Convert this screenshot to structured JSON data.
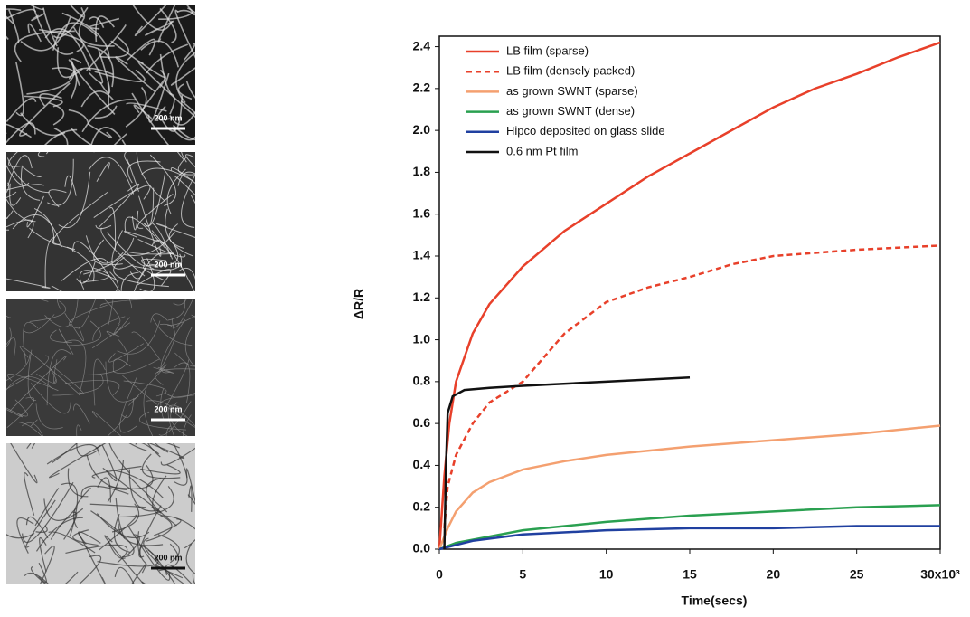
{
  "images": [
    {
      "scale": "200 nm"
    },
    {
      "scale": "200 nm"
    },
    {
      "scale": "200 nm"
    },
    {
      "scale": "200 nm"
    }
  ],
  "chart_data": {
    "type": "line",
    "xlabel": "Time(secs)",
    "ylabel": "ΔR/R",
    "xlim": [
      0,
      30
    ],
    "ylim": [
      0,
      2.45
    ],
    "xticks": [
      0,
      5,
      10,
      15,
      20,
      25,
      {
        "value": 30,
        "label": "30x10³"
      }
    ],
    "yticks": [
      {
        "value": 0,
        "label": "0.0"
      },
      0.2,
      0.4,
      0.6,
      0.8,
      {
        "value": 1,
        "label": "1.0"
      },
      1.2,
      1.4,
      1.6,
      1.8,
      {
        "value": 2,
        "label": "2.0"
      },
      2.2,
      2.4
    ],
    "legend": "upper left",
    "series": [
      {
        "name": "LB film (sparse)",
        "color": "#e8402a",
        "dash": false,
        "x": [
          0,
          0.3,
          0.6,
          1,
          2,
          3,
          5,
          7.5,
          10,
          12.5,
          15,
          17.5,
          20,
          22.5,
          25,
          27.5,
          30
        ],
        "values": [
          0,
          0.35,
          0.6,
          0.8,
          1.03,
          1.17,
          1.35,
          1.52,
          1.65,
          1.78,
          1.89,
          2.0,
          2.11,
          2.2,
          2.27,
          2.35,
          2.42
        ]
      },
      {
        "name": "LB film (densely packed)",
        "color": "#e8402a",
        "dash": true,
        "x": [
          0.3,
          0.5,
          1,
          2,
          3,
          4,
          5,
          7.5,
          10,
          12.5,
          15,
          17.5,
          20,
          25,
          30
        ],
        "values": [
          0.1,
          0.3,
          0.45,
          0.6,
          0.7,
          0.75,
          0.8,
          1.03,
          1.18,
          1.25,
          1.3,
          1.36,
          1.4,
          1.43,
          1.45
        ]
      },
      {
        "name": "as grown SWNT (sparse)",
        "color": "#f4a070",
        "dash": false,
        "x": [
          0,
          0.5,
          1,
          2,
          3,
          5,
          7.5,
          10,
          15,
          20,
          25,
          30
        ],
        "values": [
          0,
          0.1,
          0.18,
          0.27,
          0.32,
          0.38,
          0.42,
          0.45,
          0.49,
          0.52,
          0.55,
          0.59
        ]
      },
      {
        "name": "as grown SWNT (dense)",
        "color": "#2aa050",
        "dash": false,
        "x": [
          0,
          1,
          3,
          5,
          10,
          15,
          20,
          25,
          30
        ],
        "values": [
          0,
          0.03,
          0.06,
          0.09,
          0.13,
          0.16,
          0.18,
          0.2,
          0.21
        ]
      },
      {
        "name": "Hipco deposited on glass slide",
        "color": "#2040a0",
        "dash": false,
        "x": [
          0,
          2,
          5,
          10,
          15,
          20,
          25,
          30
        ],
        "values": [
          0,
          0.04,
          0.07,
          0.09,
          0.1,
          0.1,
          0.11,
          0.11
        ]
      },
      {
        "name": "0.6 nm Pt film",
        "color": "#111111",
        "dash": false,
        "x": [
          0.3,
          0.4,
          0.5,
          0.8,
          1.5,
          3,
          5,
          10,
          15
        ],
        "values": [
          0,
          0.4,
          0.65,
          0.73,
          0.76,
          0.77,
          0.78,
          0.8,
          0.82
        ]
      }
    ]
  }
}
